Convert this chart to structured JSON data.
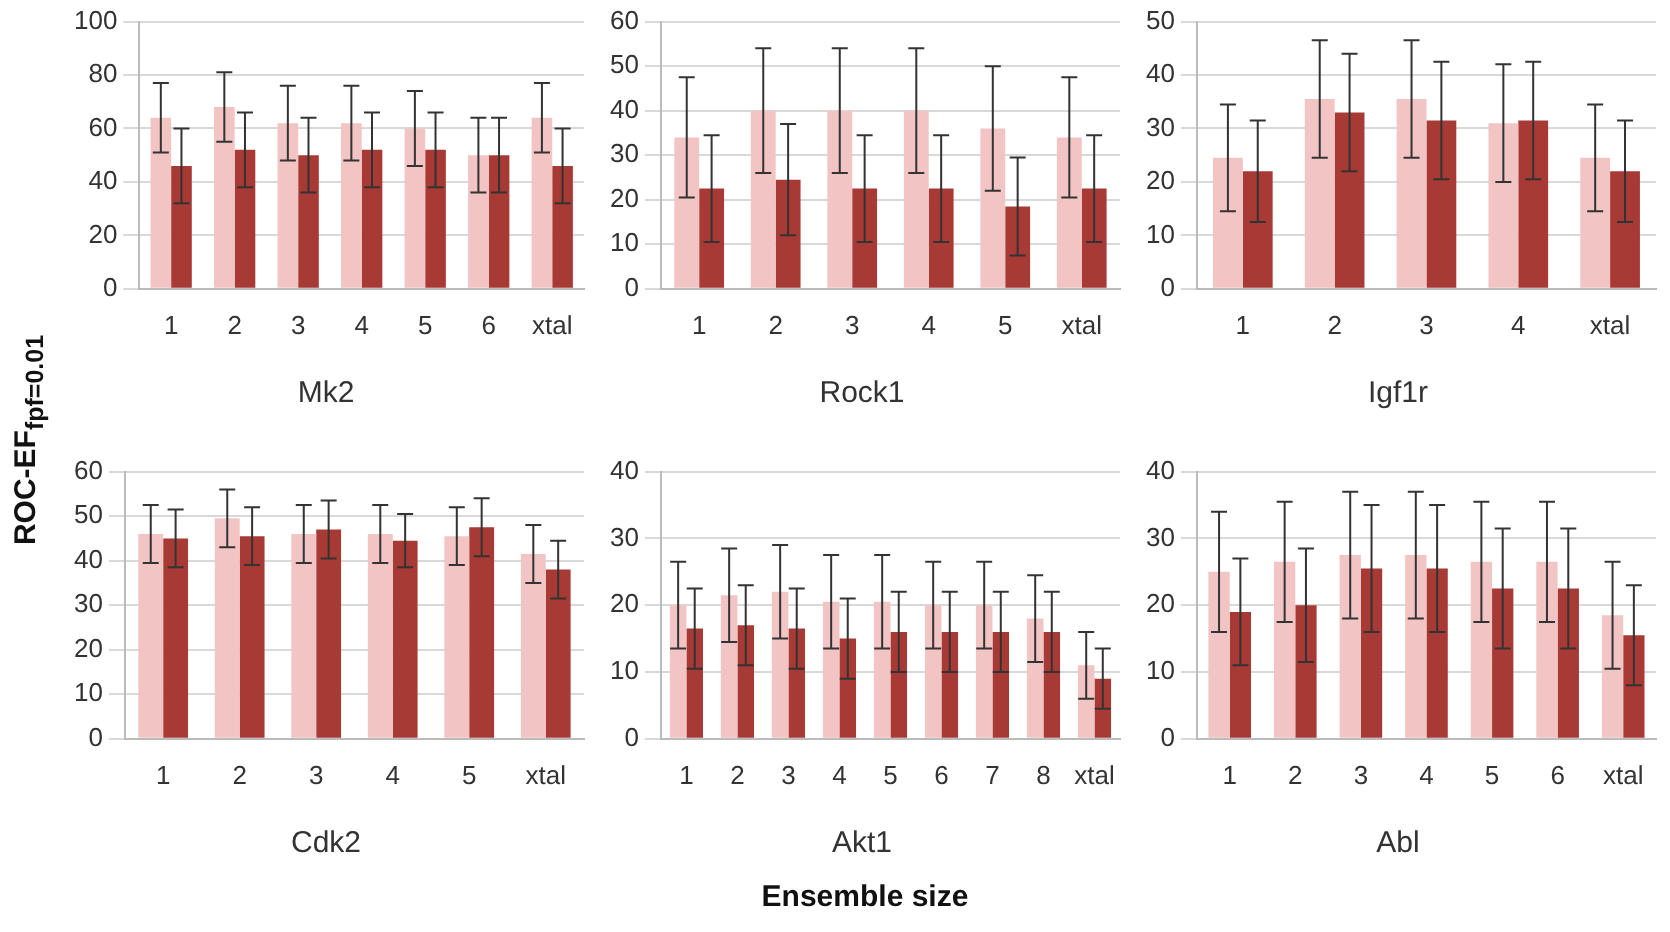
{
  "chart_data": [
    {
      "type": "bar",
      "title": "Mk2",
      "ylabel": "ROC-EF$_{fpf=0.01}$",
      "categories": [
        "1",
        "2",
        "3",
        "4",
        "5",
        "6",
        "xtal"
      ],
      "ylim": [
        0,
        100
      ],
      "yticks": [
        0,
        20,
        40,
        60,
        80,
        100
      ],
      "grid": "y",
      "series": [
        {
          "color": "#f2c4c4",
          "values": [
            64,
            68,
            62,
            62,
            60,
            50,
            64
          ],
          "errors": [
            13,
            13,
            14,
            14,
            14,
            14,
            13
          ]
        },
        {
          "color": "#a83a35",
          "values": [
            46,
            52,
            50,
            52,
            52,
            50,
            46
          ],
          "errors": [
            14,
            14,
            14,
            14,
            14,
            14,
            14
          ]
        }
      ]
    },
    {
      "type": "bar",
      "title": "Rock1",
      "categories": [
        "1",
        "2",
        "3",
        "4",
        "5",
        "xtal"
      ],
      "ylim": [
        0,
        60
      ],
      "yticks": [
        0,
        10,
        20,
        30,
        40,
        50,
        60
      ],
      "grid": "y",
      "series": [
        {
          "color": "#f2c4c4",
          "values": [
            34,
            40,
            40,
            40,
            36,
            34
          ],
          "errors": [
            13.5,
            14,
            14,
            14,
            14,
            13.5
          ]
        },
        {
          "color": "#a83a35",
          "values": [
            22.5,
            24.5,
            22.5,
            22.5,
            18.5,
            22.5
          ],
          "errors": [
            12,
            12.5,
            12,
            12,
            11,
            12
          ]
        }
      ]
    },
    {
      "type": "bar",
      "title": "Igf1r",
      "categories": [
        "1",
        "2",
        "3",
        "4",
        "xtal"
      ],
      "ylim": [
        0,
        50
      ],
      "yticks": [
        0,
        10,
        20,
        30,
        40,
        50
      ],
      "grid": "y",
      "series": [
        {
          "color": "#f2c4c4",
          "values": [
            24.5,
            35.5,
            35.5,
            31,
            24.5
          ],
          "errors": [
            10,
            11,
            11,
            11,
            10
          ]
        },
        {
          "color": "#a83a35",
          "values": [
            22,
            33,
            31.5,
            31.5,
            22
          ],
          "errors": [
            9.5,
            11,
            11,
            11,
            9.5
          ]
        }
      ]
    },
    {
      "type": "bar",
      "title": "Cdk2",
      "categories": [
        "1",
        "2",
        "3",
        "4",
        "5",
        "xtal"
      ],
      "ylim": [
        0,
        60
      ],
      "yticks": [
        0,
        10,
        20,
        30,
        40,
        50,
        60
      ],
      "grid": "y",
      "series": [
        {
          "color": "#f2c4c4",
          "values": [
            46,
            49.5,
            46,
            46,
            45.5,
            41.5
          ],
          "errors": [
            6.5,
            6.5,
            6.5,
            6.5,
            6.5,
            6.5
          ]
        },
        {
          "color": "#a83a35",
          "values": [
            45,
            45.5,
            47,
            44.5,
            47.5,
            38
          ],
          "errors": [
            6.5,
            6.5,
            6.5,
            6,
            6.5,
            6.5
          ]
        }
      ]
    },
    {
      "type": "bar",
      "title": "Akt1",
      "xlabel": "Ensemble size",
      "categories": [
        "1",
        "2",
        "3",
        "4",
        "5",
        "6",
        "7",
        "8",
        "xtal"
      ],
      "ylim": [
        0,
        40
      ],
      "yticks": [
        0,
        10,
        20,
        30,
        40
      ],
      "grid": "y",
      "series": [
        {
          "color": "#f2c4c4",
          "values": [
            20,
            21.5,
            22,
            20.5,
            20.5,
            20,
            20,
            18,
            11
          ],
          "errors": [
            6.5,
            7,
            7,
            7,
            7,
            6.5,
            6.5,
            6.5,
            5
          ]
        },
        {
          "color": "#a83a35",
          "values": [
            16.5,
            17,
            16.5,
            15,
            16,
            16,
            16,
            16,
            9
          ],
          "errors": [
            6,
            6,
            6,
            6,
            6,
            6,
            6,
            6,
            4.5
          ]
        }
      ]
    },
    {
      "type": "bar",
      "title": "Abl",
      "categories": [
        "1",
        "2",
        "3",
        "4",
        "5",
        "6",
        "xtal"
      ],
      "ylim": [
        0,
        40
      ],
      "yticks": [
        0,
        10,
        20,
        30,
        40
      ],
      "grid": "y",
      "series": [
        {
          "color": "#f2c4c4",
          "values": [
            25,
            26.5,
            27.5,
            27.5,
            26.5,
            26.5,
            18.5
          ],
          "errors": [
            9,
            9,
            9.5,
            9.5,
            9,
            9,
            8
          ]
        },
        {
          "color": "#a83a35",
          "values": [
            19,
            20,
            25.5,
            25.5,
            22.5,
            22.5,
            15.5
          ],
          "errors": [
            8,
            8.5,
            9.5,
            9.5,
            9,
            9,
            7.5
          ]
        }
      ]
    }
  ]
}
